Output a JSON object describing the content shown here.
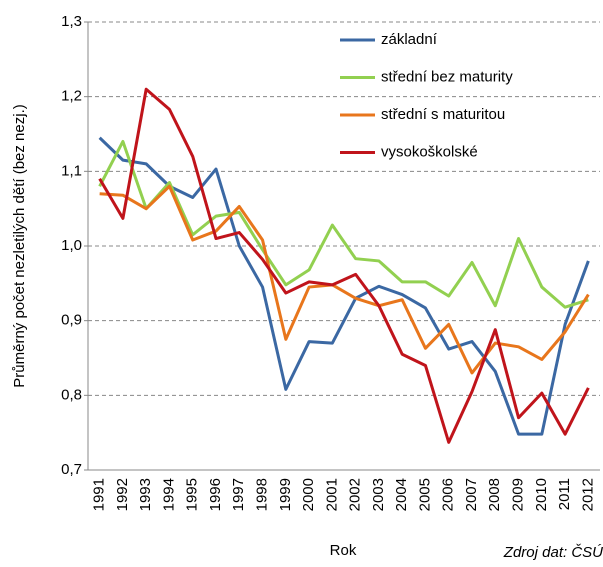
{
  "chart_data": {
    "type": "line",
    "y_label": "Průměrný počet nezletilých dětí (bez nezj.)",
    "x_label": "Rok",
    "source": "Zdroj dat: ČSÚ",
    "categories": [
      "1991",
      "1992",
      "1993",
      "1994",
      "1995",
      "1996",
      "1997",
      "1998",
      "1999",
      "2000",
      "2001",
      "2002",
      "2003",
      "2004",
      "2005",
      "2006",
      "2007",
      "2008",
      "2009",
      "2010",
      "2011",
      "2012"
    ],
    "series": [
      {
        "name": "základní",
        "color": "#3b68a3",
        "values": [
          1.145,
          1.115,
          1.11,
          1.08,
          1.065,
          1.103,
          1.0,
          0.945,
          0.808,
          0.872,
          0.87,
          0.93,
          0.946,
          0.935,
          0.917,
          0.862,
          0.872,
          0.832,
          0.748,
          0.748,
          0.895,
          0.98
        ]
      },
      {
        "name": "střední bez maturity",
        "color": "#92d050",
        "values": [
          1.08,
          1.14,
          1.05,
          1.085,
          1.015,
          1.04,
          1.045,
          0.995,
          0.948,
          0.968,
          1.028,
          0.983,
          0.98,
          0.952,
          0.952,
          0.933,
          0.978,
          0.92,
          1.01,
          0.945,
          0.918,
          0.928
        ]
      },
      {
        "name": "střední s maturitou",
        "color": "#e8761c",
        "values": [
          1.07,
          1.068,
          1.05,
          1.08,
          1.008,
          1.02,
          1.053,
          1.008,
          0.875,
          0.945,
          0.948,
          0.93,
          0.92,
          0.928,
          0.863,
          0.895,
          0.83,
          0.87,
          0.865,
          0.848,
          0.885,
          0.935
        ]
      },
      {
        "name": "vysokoškolské",
        "color": "#c0141b",
        "values": [
          1.09,
          1.037,
          1.21,
          1.183,
          1.12,
          1.01,
          1.018,
          0.982,
          0.937,
          0.952,
          0.948,
          0.962,
          0.92,
          0.855,
          0.84,
          0.737,
          0.805,
          0.888,
          0.77,
          0.803,
          0.748,
          0.81
        ]
      }
    ],
    "ylim": [
      0.7,
      1.3
    ],
    "yticks": [
      {
        "value": 0.7,
        "label": "0,7"
      },
      {
        "value": 0.8,
        "label": "0,8"
      },
      {
        "value": 0.9,
        "label": "0,9"
      },
      {
        "value": 1.0,
        "label": "1,0"
      },
      {
        "value": 1.1,
        "label": "1,1"
      },
      {
        "value": 1.2,
        "label": "1,2"
      },
      {
        "value": 1.3,
        "label": "1,3"
      }
    ],
    "grid": true,
    "legend": "upper right"
  }
}
